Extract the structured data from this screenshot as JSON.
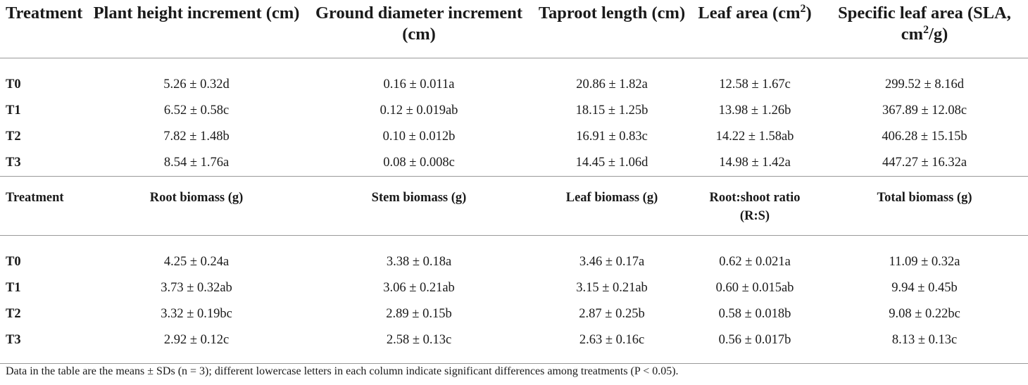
{
  "table1": {
    "headers": [
      "Treatment",
      "Plant height increment (cm)",
      "Ground diameter increment (cm)",
      "Taproot length (cm)",
      "Leaf area (cm",
      "Specific leaf area (SLA, cm"
    ],
    "header_sup": [
      "",
      "",
      "",
      "",
      "2",
      "2"
    ],
    "header_tail": [
      "",
      "",
      "",
      "",
      ")",
      "/g)"
    ],
    "rows": [
      [
        "T0",
        "5.26 ± 0.32d",
        "0.16 ± 0.011a",
        "20.86 ± 1.82a",
        "12.58 ± 1.67c",
        "299.52 ± 8.16d"
      ],
      [
        "T1",
        "6.52 ± 0.58c",
        "0.12 ± 0.019ab",
        "18.15 ± 1.25b",
        "13.98 ± 1.26b",
        "367.89 ± 12.08c"
      ],
      [
        "T2",
        "7.82 ± 1.48b",
        "0.10 ± 0.012b",
        "16.91 ± 0.83c",
        "14.22 ± 1.58ab",
        "406.28 ± 15.15b"
      ],
      [
        "T3",
        "8.54 ± 1.76a",
        "0.08 ± 0.008c",
        "14.45 ± 1.06d",
        "14.98 ± 1.42a",
        "447.27 ± 16.32a"
      ]
    ]
  },
  "table2": {
    "headers": [
      "Treatment",
      "Root biomass (g)",
      "Stem biomass (g)",
      "Leaf biomass (g)",
      "Root:shoot ratio (R:S)",
      "Total biomass (g)"
    ],
    "rows": [
      [
        "T0",
        "4.25 ± 0.24a",
        "3.38 ± 0.18a",
        "3.46 ± 0.17a",
        "0.62 ± 0.021a",
        "11.09 ± 0.32a"
      ],
      [
        "T1",
        "3.73 ± 0.32ab",
        "3.06 ± 0.21ab",
        "3.15 ± 0.21ab",
        "0.60 ± 0.015ab",
        "9.94 ± 0.45b"
      ],
      [
        "T2",
        "3.32 ± 0.19bc",
        "2.89 ± 0.15b",
        "2.87 ± 0.25b",
        "0.58 ± 0.018b",
        "9.08 ± 0.22bc"
      ],
      [
        "T3",
        "2.92 ± 0.12c",
        "2.58 ± 0.13c",
        "2.63 ± 0.16c",
        "0.56 ± 0.017b",
        "8.13 ± 0.13c"
      ]
    ]
  },
  "footnote": "Data in the table are the means ± SDs (n = 3); different lowercase letters in each column indicate significant differences among treatments (P < 0.05)."
}
